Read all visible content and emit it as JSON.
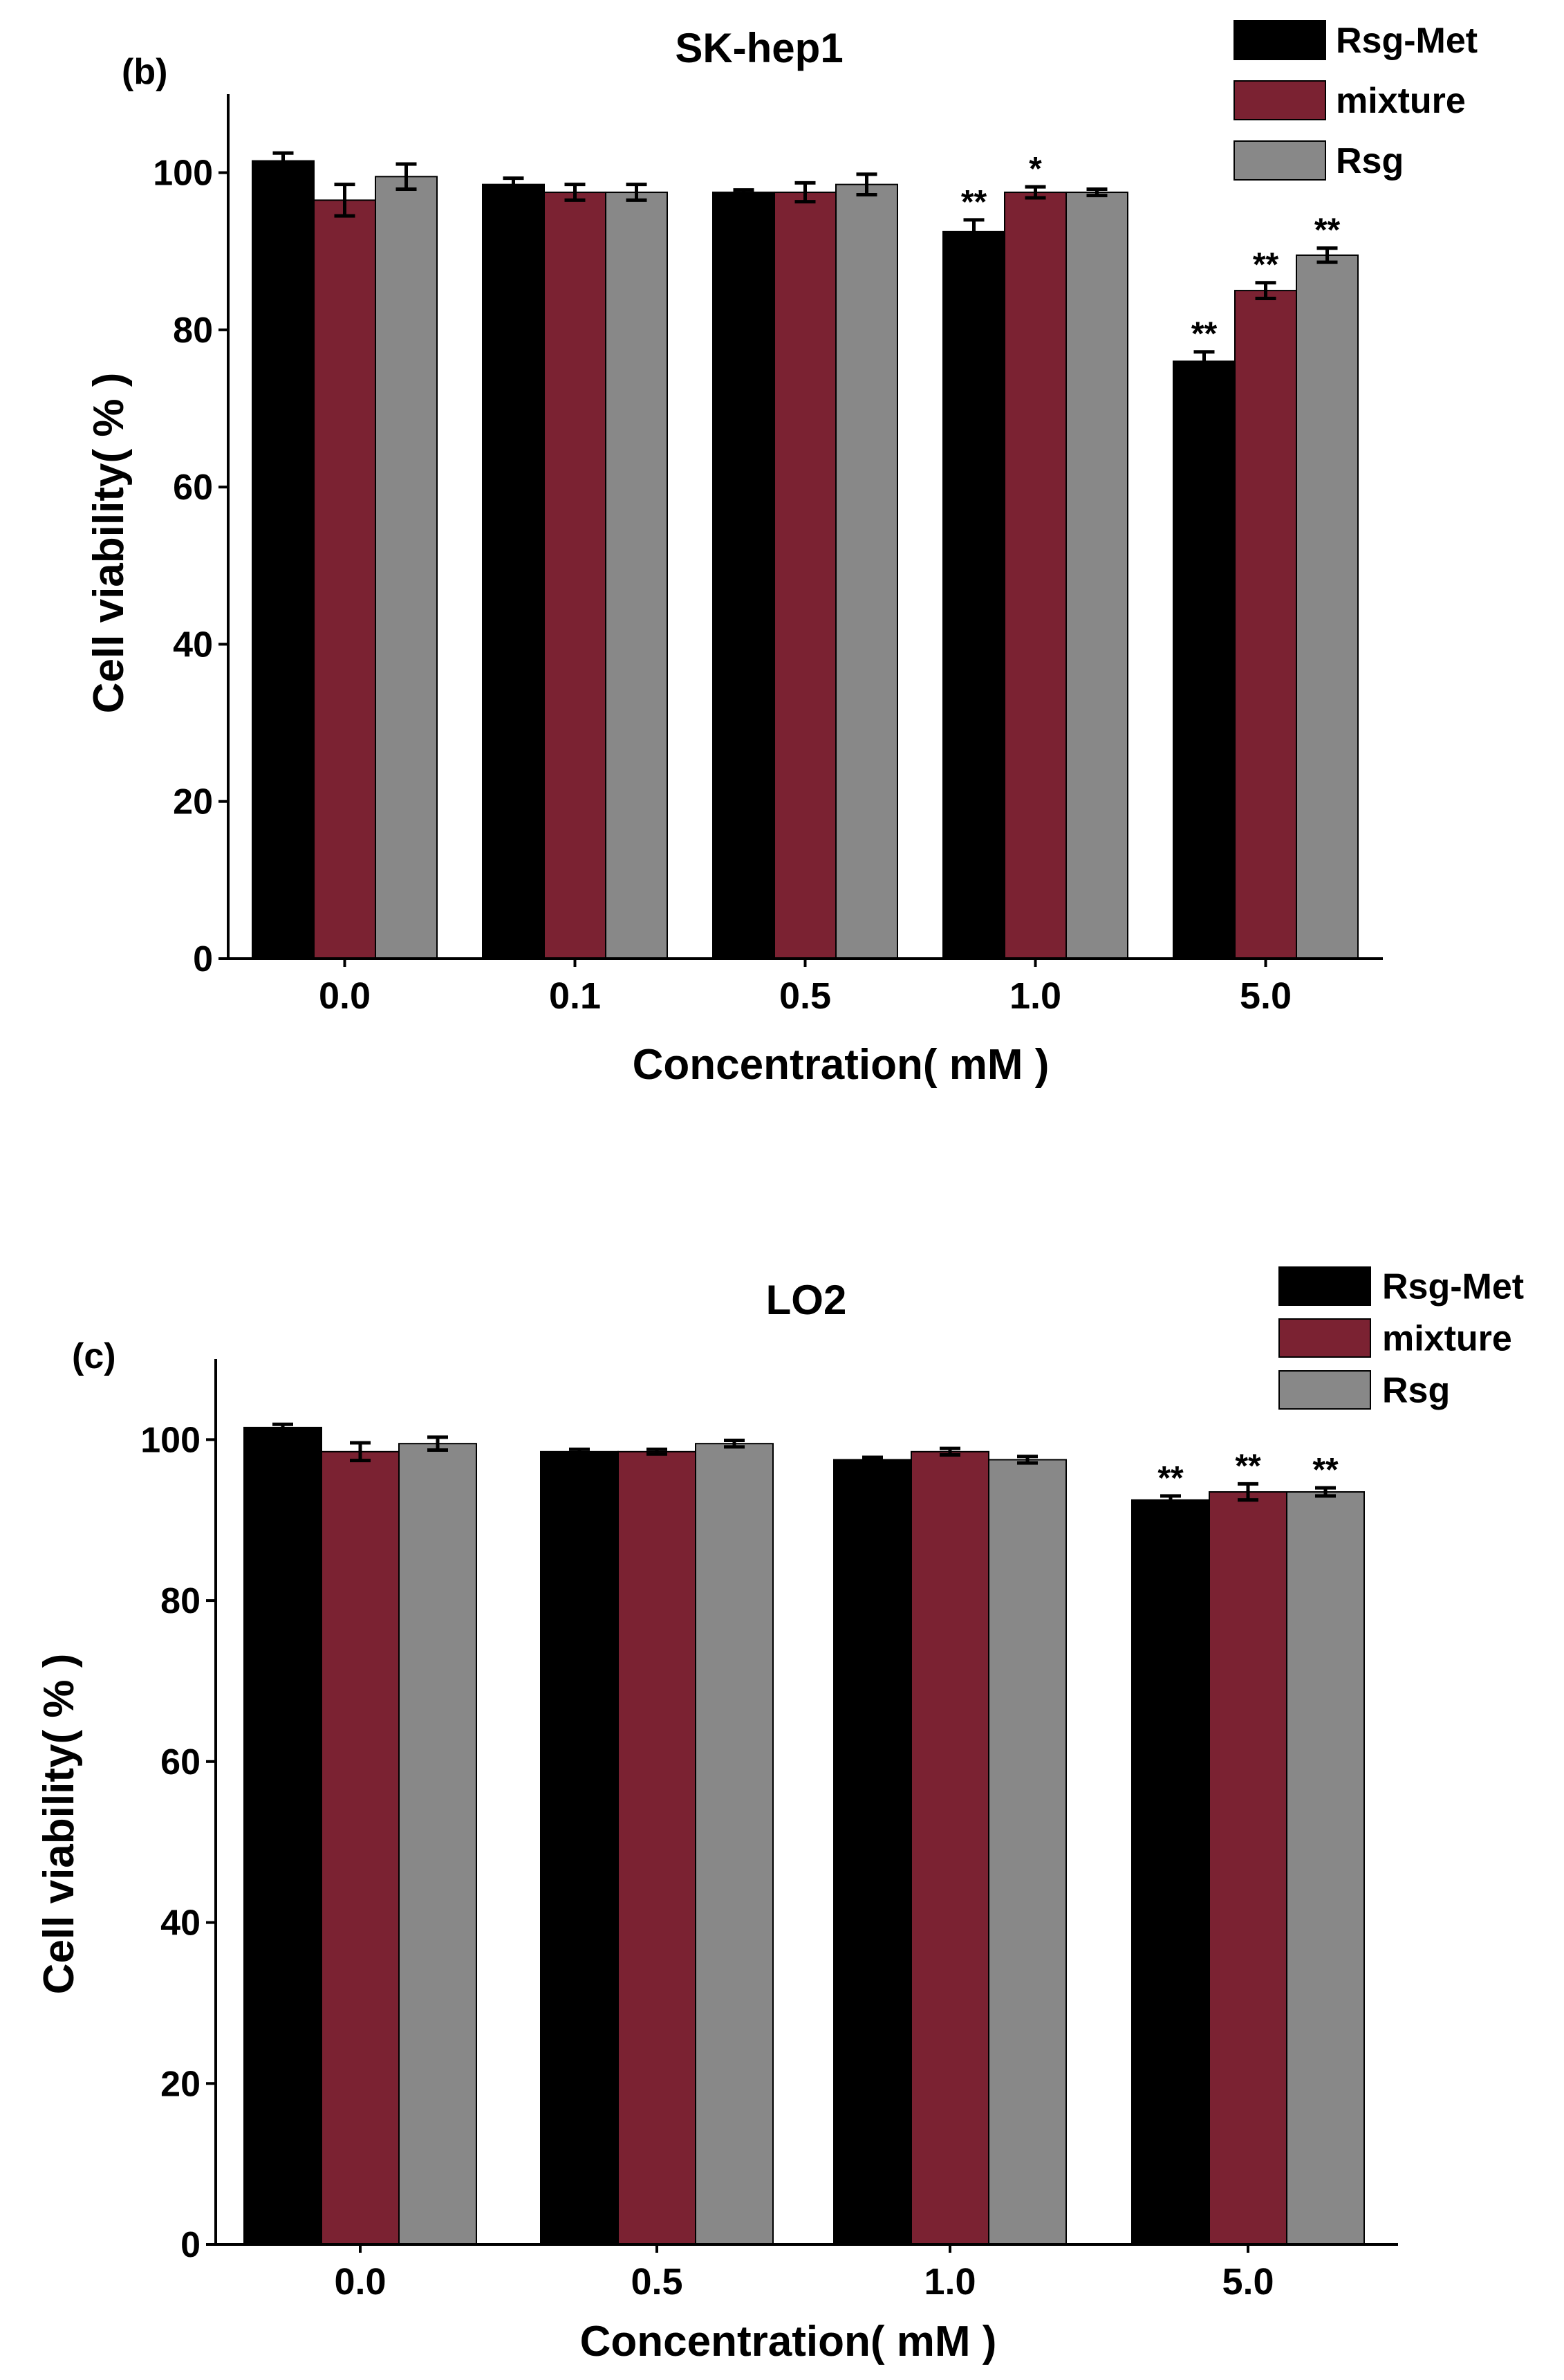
{
  "figure": {
    "panels": [
      "b",
      "c"
    ]
  },
  "chart_data": [
    {
      "type": "bar",
      "panel_label": "(b)",
      "title": "SK-hep1",
      "xlabel": "Concentration( mM )",
      "ylabel": "Cell viability( % )",
      "ylim": [
        0,
        110
      ],
      "yticks": [
        0,
        20,
        40,
        60,
        80,
        100
      ],
      "grid": false,
      "legend_position": "top-right",
      "categories": [
        "0.0",
        "0.1",
        "0.5",
        "1.0",
        "5.0"
      ],
      "series": [
        {
          "name": "Rsg-Met",
          "color": "#000000",
          "values": [
            101.5,
            98.5,
            97.5,
            92.5,
            76
          ],
          "errors": [
            1,
            0.8,
            0.3,
            1.5,
            1.2
          ],
          "sig": [
            "",
            "",
            "",
            "**",
            "**"
          ]
        },
        {
          "name": "mixture",
          "color": "#7b2232",
          "values": [
            96.5,
            97.5,
            97.5,
            97.5,
            85
          ],
          "errors": [
            2,
            1,
            1.2,
            0.7,
            1
          ],
          "sig": [
            "",
            "",
            "",
            "*",
            "**"
          ]
        },
        {
          "name": "Rsg",
          "color": "#888888",
          "values": [
            99.5,
            97.5,
            98.5,
            97.5,
            89.5
          ],
          "errors": [
            1.6,
            1,
            1.3,
            0.4,
            0.9
          ],
          "sig": [
            "",
            "",
            "",
            "",
            "**"
          ]
        }
      ]
    },
    {
      "type": "bar",
      "panel_label": "(c)",
      "title": "LO2",
      "xlabel": "Concentration( mM )",
      "ylabel": "Cell viability( % )",
      "ylim": [
        0,
        110
      ],
      "yticks": [
        0,
        20,
        40,
        60,
        80,
        100
      ],
      "grid": false,
      "legend_position": "top-right",
      "categories": [
        "0.0",
        "0.5",
        "1.0",
        "5.0"
      ],
      "series": [
        {
          "name": "Rsg-Met",
          "color": "#000000",
          "values": [
            101.5,
            98.5,
            97.5,
            92.5
          ],
          "errors": [
            0.4,
            0.3,
            0.3,
            0.5
          ],
          "sig": [
            "",
            "",
            "",
            "**"
          ]
        },
        {
          "name": "mixture",
          "color": "#7b2232",
          "values": [
            98.5,
            98.5,
            98.5,
            93.5
          ],
          "errors": [
            1.1,
            0.3,
            0.4,
            1
          ],
          "sig": [
            "",
            "",
            "",
            "**"
          ]
        },
        {
          "name": "Rsg",
          "color": "#888888",
          "values": [
            99.5,
            99.5,
            97.5,
            93.5
          ],
          "errors": [
            0.8,
            0.4,
            0.4,
            0.5
          ],
          "sig": [
            "",
            "",
            "",
            "**"
          ]
        }
      ]
    }
  ]
}
